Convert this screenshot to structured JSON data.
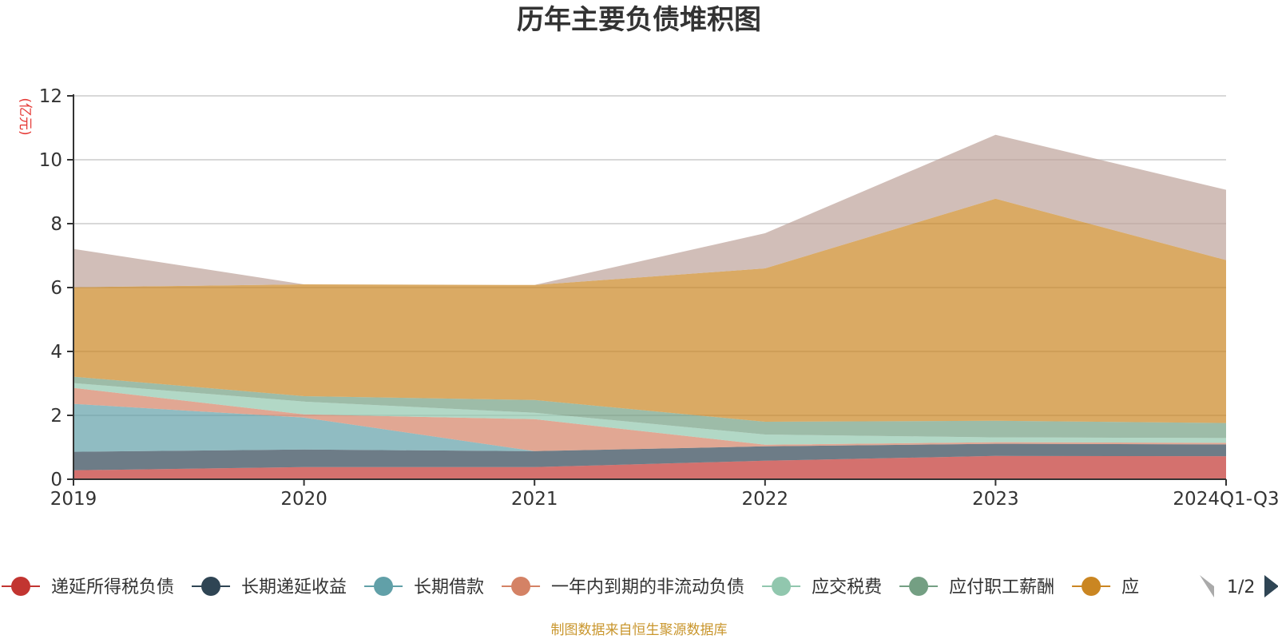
{
  "chart_data": {
    "type": "area",
    "stacked": true,
    "title": "历年主要负债堆积图",
    "unit_label": "(亿元)",
    "categories": [
      "2019",
      "2020",
      "2021",
      "2022",
      "2023",
      "2024Q1-Q3"
    ],
    "ylim": [
      0,
      12
    ],
    "yticks": [
      0,
      2,
      4,
      6,
      8,
      10,
      12
    ],
    "grid": true,
    "series": [
      {
        "name": "递延所得税负债",
        "color": "#c23531",
        "legend_color": "#c23531",
        "values": [
          0.28,
          0.38,
          0.38,
          0.58,
          0.73,
          0.72
        ]
      },
      {
        "name": "长期递延收益",
        "color": "#2f4554",
        "legend_color": "#2f4554",
        "values": [
          0.58,
          0.55,
          0.5,
          0.45,
          0.38,
          0.37
        ]
      },
      {
        "name": "长期借款",
        "color": "#61a0a8",
        "legend_color": "#61a0a8",
        "values": [
          1.5,
          1.0,
          0.0,
          0.0,
          0.0,
          0.0
        ]
      },
      {
        "name": "一年内到期的非流动负债",
        "color": "#d48265",
        "legend_color": "#d48265",
        "values": [
          0.5,
          0.1,
          1.0,
          0.05,
          0.05,
          0.05
        ]
      },
      {
        "name": "应交税费",
        "color": "#91c7ae",
        "legend_color": "#91c7ae",
        "values": [
          0.15,
          0.4,
          0.2,
          0.32,
          0.15,
          0.15
        ]
      },
      {
        "name": "应付职工薪酬",
        "color": "#749f83",
        "legend_color": "#749f83",
        "values": [
          0.2,
          0.17,
          0.4,
          0.4,
          0.52,
          0.47
        ]
      },
      {
        "name": "应",
        "color": "#ca8622",
        "legend_color": "#ca8622",
        "values": [
          2.8,
          3.5,
          3.6,
          4.8,
          6.95,
          5.1
        ]
      },
      {
        "name": "",
        "color": "#bda29a",
        "legend_color": "#bda29a",
        "values": [
          1.2,
          0.0,
          0.0,
          1.1,
          2.0,
          2.2
        ]
      }
    ],
    "legend_position": "bottom",
    "legend_pager": "1/2"
  },
  "source_note": "制图数据来自恒生聚源数据库"
}
